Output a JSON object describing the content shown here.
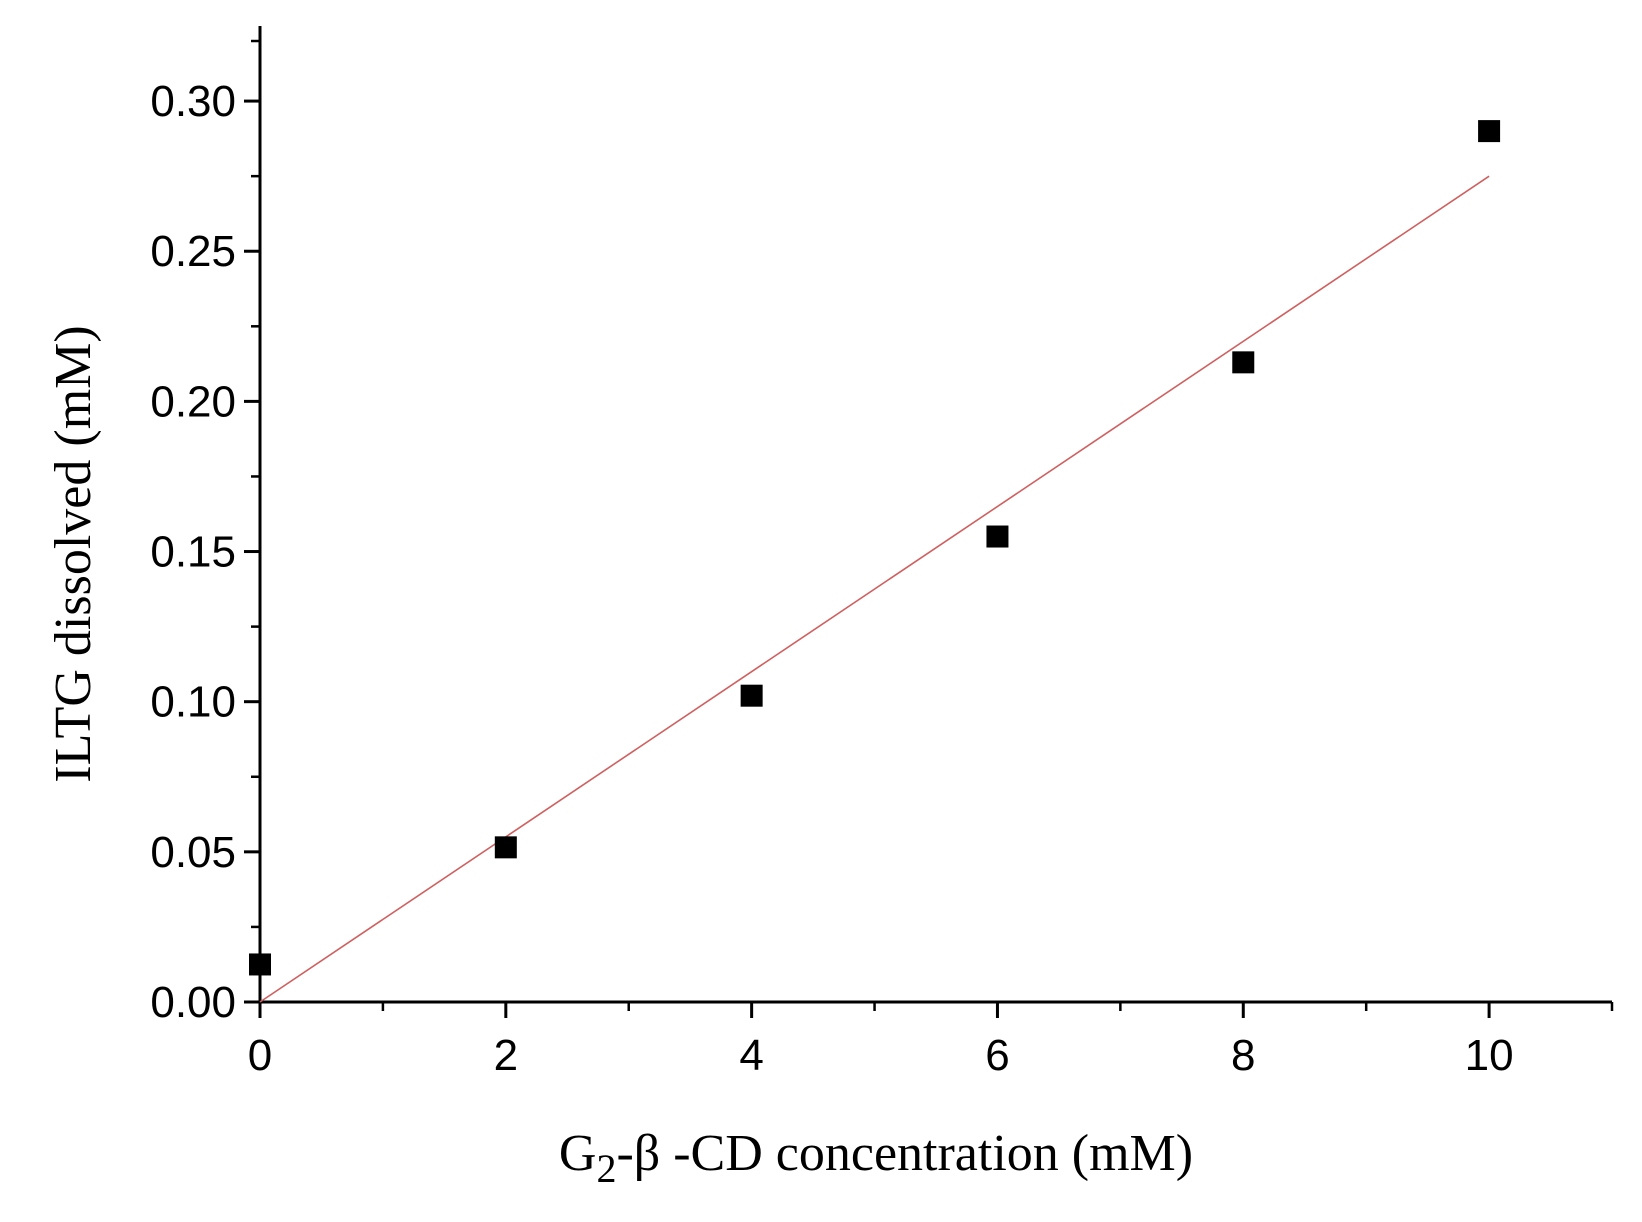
{
  "chart_data": {
    "type": "scatter",
    "title": "",
    "xlabel": {
      "prefix": "G",
      "subscript": "2",
      "suffix": "-β  -CD concentration (mM)"
    },
    "ylabel": "ILTG dissolved (mM)",
    "xlim": [
      0,
      11
    ],
    "ylim": [
      0,
      0.325
    ],
    "xticks": [
      0,
      2,
      4,
      6,
      8,
      10
    ],
    "xtick_labels": [
      "0",
      "2",
      "4",
      "6",
      "8",
      "10"
    ],
    "x_minor_ticks": [
      1,
      3,
      5,
      7,
      9,
      11
    ],
    "yticks": [
      0,
      0.05,
      0.1,
      0.15,
      0.2,
      0.25,
      0.3
    ],
    "ytick_labels": [
      "0.00",
      "0.05",
      "0.10",
      "0.15",
      "0.20",
      "0.25",
      "0.30"
    ],
    "y_minor_ticks": [
      0.025,
      0.075,
      0.125,
      0.175,
      0.225,
      0.275,
      0.32
    ],
    "grid": false,
    "legend": "none",
    "series": [
      {
        "marker": "square",
        "color": "#000000",
        "points": [
          {
            "x": 0,
            "y": 0.0125
          },
          {
            "x": 2,
            "y": 0.0515
          },
          {
            "x": 4,
            "y": 0.102
          },
          {
            "x": 6,
            "y": 0.155
          },
          {
            "x": 8,
            "y": 0.213
          },
          {
            "x": 10,
            "y": 0.29
          }
        ]
      }
    ],
    "fit_line": {
      "color": "#d06060",
      "x": [
        0,
        10
      ],
      "y": [
        0,
        0.275
      ]
    }
  }
}
